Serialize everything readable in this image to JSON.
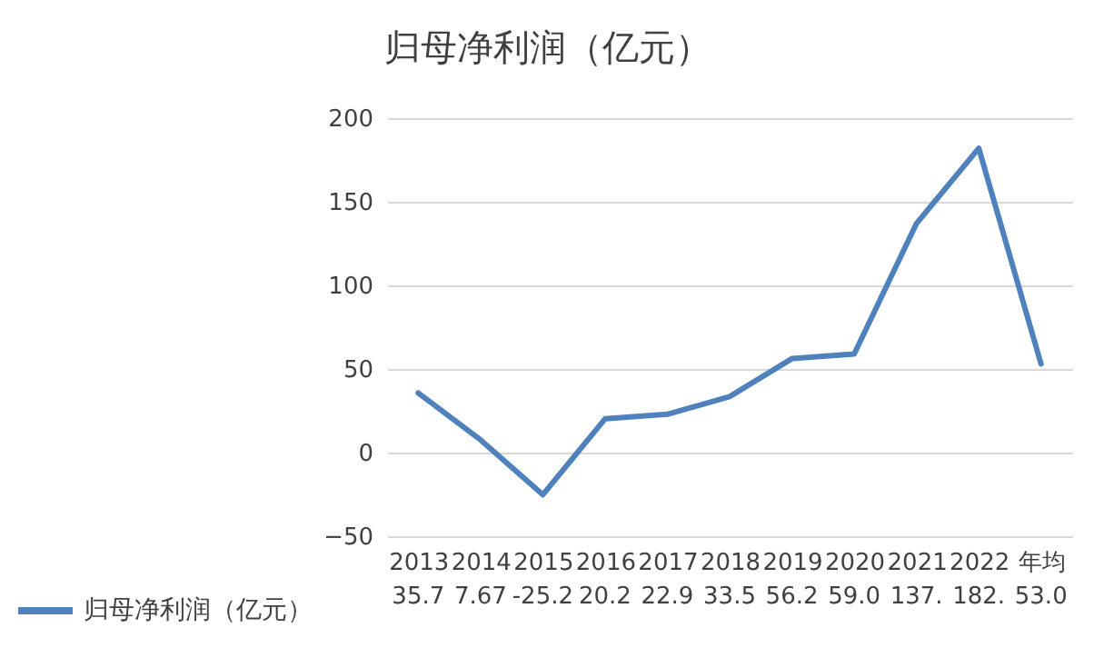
{
  "chart_data": {
    "type": "line",
    "title": "归母净利润（亿元）",
    "categories": [
      "2013",
      "2014",
      "2015",
      "2016",
      "2017",
      "2018",
      "2019",
      "2020",
      "2021",
      "2022",
      "年均"
    ],
    "series": [
      {
        "name": "归母净利润（亿元）",
        "color": "#4f81bd",
        "values": [
          35.7,
          7.67,
          -25.2,
          20.2,
          22.9,
          33.5,
          56.2,
          59.0,
          137,
          182,
          53.0
        ],
        "value_labels": [
          "35.7",
          "7.67",
          "-25.2",
          "20.2",
          "22.9",
          "33.5",
          "56.2",
          "59.0",
          "137.",
          "182.",
          "53.0"
        ]
      }
    ],
    "ylim": [
      -50,
      200
    ],
    "yticks": [
      -50,
      0,
      50,
      100,
      150,
      200
    ],
    "grid": "y",
    "legend": "bottom left",
    "marker": "none",
    "line_style": "solid"
  }
}
